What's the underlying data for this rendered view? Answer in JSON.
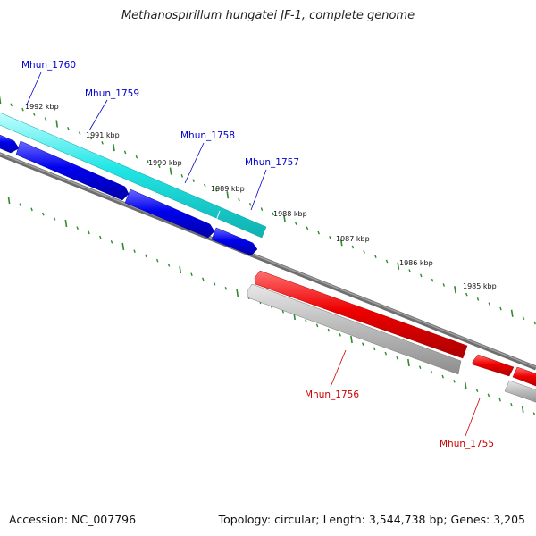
{
  "title": "Methanospirillum hungatei JF-1, complete genome",
  "footer": {
    "accession": "Accession: NC_007796",
    "summary": "Topology: circular; Length: 3,544,738 bp; Genes: 3,205"
  },
  "colors": {
    "forward_cds": "#0000ee",
    "forward_gene": "#22e0e0",
    "reverse_cds": "#ee0000",
    "reverse_gene": "#bdbdbd",
    "backbone": "#6e6e6e",
    "tick": "#2e8b2e",
    "forward_label": "#0000cc",
    "reverse_label": "#cc0000"
  },
  "ruler_labels": [
    "1992 kbp",
    "1991 kbp",
    "1990 kbp",
    "1989 kbp",
    "1988 kbp",
    "1987 kbp",
    "1986 kbp",
    "1985 kbp"
  ],
  "forward_genes": [
    {
      "name": "Mhun_1760"
    },
    {
      "name": "Mhun_1759"
    },
    {
      "name": "Mhun_1758"
    },
    {
      "name": "Mhun_1757"
    }
  ],
  "reverse_genes": [
    {
      "name": "Mhun_1756"
    },
    {
      "name": "Mhun_1755"
    }
  ]
}
